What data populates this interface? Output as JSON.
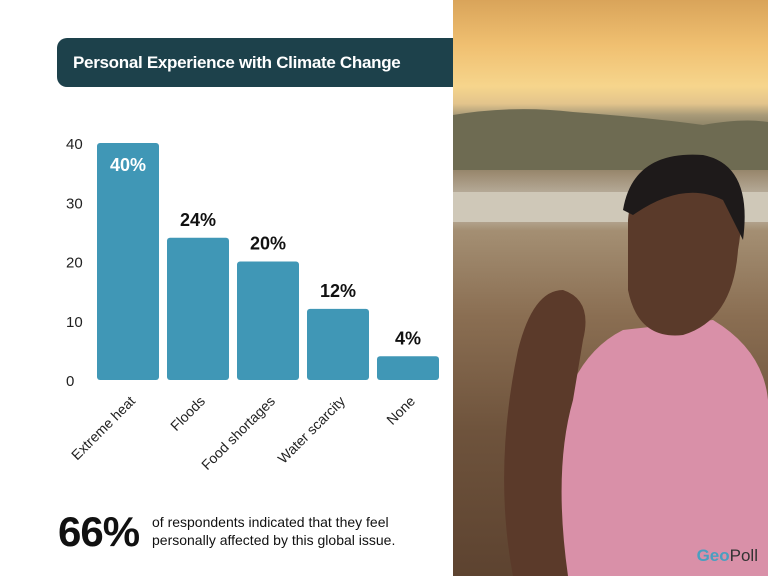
{
  "header": {
    "title": "Personal Experience with Climate Change"
  },
  "chart_data": {
    "type": "bar",
    "title": "Personal Experience with Climate Change",
    "categories": [
      "Extreme heat",
      "Floods",
      "Food shortages",
      "Water scarcity",
      "None"
    ],
    "values": [
      40,
      24,
      20,
      12,
      4
    ],
    "data_labels": [
      "40%",
      "24%",
      "20%",
      "12%",
      "4%"
    ],
    "yticks": [
      0,
      10,
      20,
      30,
      40
    ],
    "ylim": [
      0,
      40
    ],
    "grid": false,
    "bar_color": "#4097b6"
  },
  "summary": {
    "stat": "66%",
    "text": "of respondents indicated that they feel personally affected by this global issue."
  },
  "brand": {
    "logo_prefix": "Geo",
    "logo_suffix": "Poll"
  }
}
